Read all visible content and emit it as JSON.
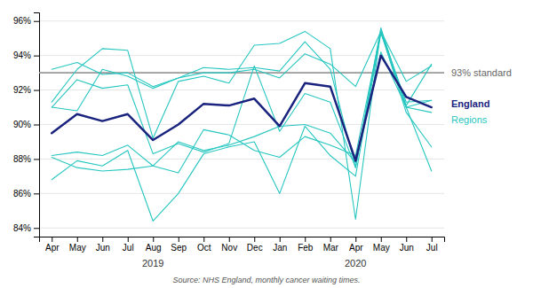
{
  "chart_data": {
    "type": "line",
    "categories": [
      "Apr",
      "May",
      "Jun",
      "Jul",
      "Aug",
      "Sep",
      "Oct",
      "Nov",
      "Dec",
      "Jan",
      "Feb",
      "Mar",
      "Apr",
      "May",
      "Jun",
      "Jul"
    ],
    "year_labels": [
      {
        "text": "2019",
        "at": 4
      },
      {
        "text": "2020",
        "at": 12
      }
    ],
    "series": [
      {
        "color": "#26c6c0",
        "values": [
          91.0,
          90.8,
          93.2,
          92.8,
          92.1,
          92.7,
          93.0,
          93.0,
          93.2,
          92.7,
          94.1,
          93.5,
          92.2,
          95.4,
          92.5,
          93.4
        ]
      },
      {
        "color": "#26c6c0",
        "values": [
          93.2,
          93.6,
          92.9,
          93.0,
          92.2,
          92.7,
          93.3,
          93.2,
          93.3,
          93.1,
          94.8,
          93.2,
          87.5,
          95.6,
          91.0,
          91.4
        ]
      },
      {
        "color": "#26c6c0",
        "values": [
          88.1,
          87.5,
          87.3,
          87.4,
          87.6,
          89.0,
          88.5,
          88.8,
          89.3,
          89.9,
          90.0,
          89.5,
          87.8,
          94.2,
          91.0,
          90.7
        ]
      },
      {
        "color": "#26c6c0",
        "values": [
          86.8,
          87.9,
          87.6,
          88.5,
          84.4,
          86.0,
          88.3,
          88.7,
          89.0,
          86.0,
          89.9,
          88.2,
          87.0,
          95.3,
          91.0,
          87.3
        ]
      },
      {
        "color": "#26c6c0",
        "values": [
          91.3,
          93.2,
          94.4,
          94.3,
          89.2,
          92.5,
          92.8,
          92.4,
          94.6,
          94.7,
          95.4,
          94.4,
          84.5,
          95.5,
          91.1,
          93.5
        ]
      },
      {
        "color": "#26c6c0",
        "values": [
          91.0,
          92.6,
          92.1,
          92.3,
          88.3,
          88.9,
          88.4,
          88.9,
          93.4,
          89.6,
          91.8,
          91.3,
          87.5,
          95.4,
          91.3,
          91.4
        ]
      },
      {
        "color": "#26c6c0",
        "values": [
          88.2,
          88.4,
          88.2,
          88.8,
          87.6,
          87.2,
          89.7,
          89.4,
          88.5,
          88.1,
          89.3,
          88.8,
          88.2,
          95.4,
          90.7,
          88.7
        ]
      },
      {
        "name": "England",
        "color": "#1a237e",
        "values": [
          89.5,
          90.6,
          90.2,
          90.6,
          89.1,
          90.0,
          91.2,
          91.1,
          91.5,
          89.9,
          92.4,
          92.2,
          87.9,
          94.0,
          91.6,
          91.0
        ]
      }
    ],
    "reference_lines": [
      {
        "value": 93.0,
        "label": "93% standard",
        "color": "#999999"
      }
    ],
    "annotations": [
      {
        "text": "Regions",
        "color": "#26c6c0"
      }
    ],
    "source": "Source: NHS England, monthly cancer waiting times.",
    "ylim": [
      83.5,
      96.5
    ],
    "yticks": [
      {
        "value": 84,
        "label": "84%"
      },
      {
        "value": 86,
        "label": "86%"
      },
      {
        "value": 88,
        "label": "88%"
      },
      {
        "value": 90,
        "label": "90%"
      },
      {
        "value": 92,
        "label": "92%"
      },
      {
        "value": 94,
        "label": "94%"
      },
      {
        "value": 96,
        "label": "96%"
      }
    ],
    "grid": true
  }
}
